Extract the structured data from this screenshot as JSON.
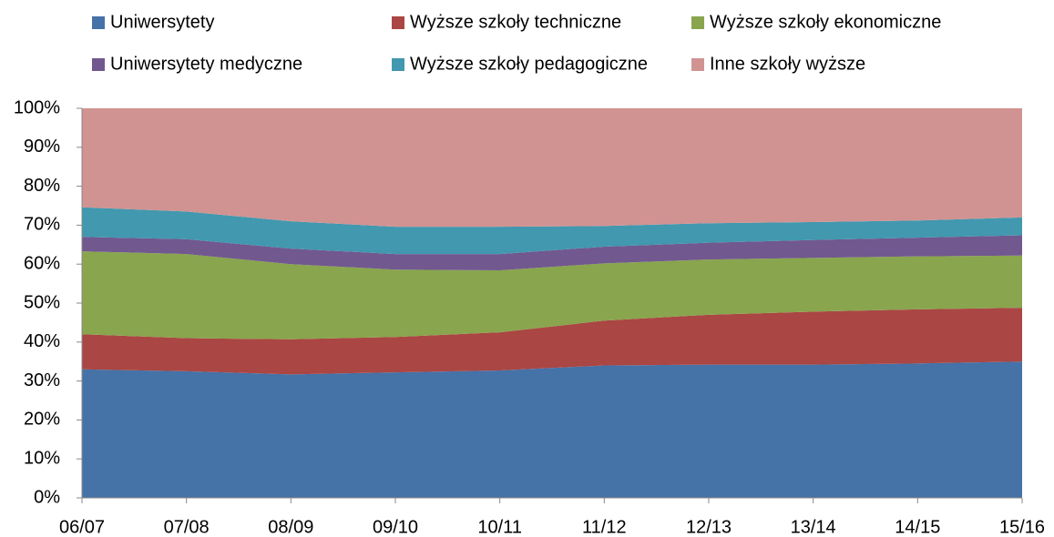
{
  "chart_data": {
    "type": "stacked_area",
    "categories": [
      "06/07",
      "07/08",
      "08/09",
      "09/10",
      "10/11",
      "11/12",
      "12/13",
      "13/14",
      "14/15",
      "15/16"
    ],
    "series": [
      {
        "name": "Uniwersytety",
        "color": "#4572a7",
        "values": [
          33,
          32.5,
          31.7,
          32.2,
          32.7,
          34,
          34.2,
          34.2,
          34.5,
          35
        ]
      },
      {
        "name": "Wyższe szkoły techniczne",
        "color": "#aa4643",
        "values": [
          9,
          8.5,
          9,
          9.1,
          9.8,
          11.5,
          12.8,
          13.6,
          13.9,
          13.8
        ]
      },
      {
        "name": "Wyższe szkoły ekonomiczne",
        "color": "#89a54e",
        "values": [
          21.3,
          21.6,
          19.3,
          17.3,
          15.9,
          14.7,
          14.2,
          13.8,
          13.6,
          13.4
        ]
      },
      {
        "name": "Uniwersytety medyczne",
        "color": "#71588f",
        "values": [
          3.7,
          3.8,
          4,
          4,
          4.2,
          4.3,
          4.3,
          4.6,
          4.8,
          5.2
        ]
      },
      {
        "name": "Wyższe szkoły pedagogiczne",
        "color": "#4198af",
        "values": [
          7.6,
          7.1,
          7,
          7,
          7,
          5.3,
          5,
          4.6,
          4.4,
          4.6
        ]
      },
      {
        "name": "Inne szkoły wyższe",
        "color": "#d09392",
        "values": [
          25.4,
          26.5,
          29,
          30.4,
          30.4,
          30.2,
          29.5,
          29.2,
          28.8,
          28
        ]
      }
    ],
    "ylim": [
      0,
      100
    ],
    "yticks": [
      {
        "value": 0,
        "label": "0%"
      },
      {
        "value": 10,
        "label": "10%"
      },
      {
        "value": 20,
        "label": "20%"
      },
      {
        "value": 30,
        "label": "30%"
      },
      {
        "value": 40,
        "label": "40%"
      },
      {
        "value": 50,
        "label": "50%"
      },
      {
        "value": 60,
        "label": "60%"
      },
      {
        "value": 70,
        "label": "70%"
      },
      {
        "value": 80,
        "label": "80%"
      },
      {
        "value": 90,
        "label": "90%"
      },
      {
        "value": 100,
        "label": "100%"
      }
    ],
    "legend": "top"
  }
}
